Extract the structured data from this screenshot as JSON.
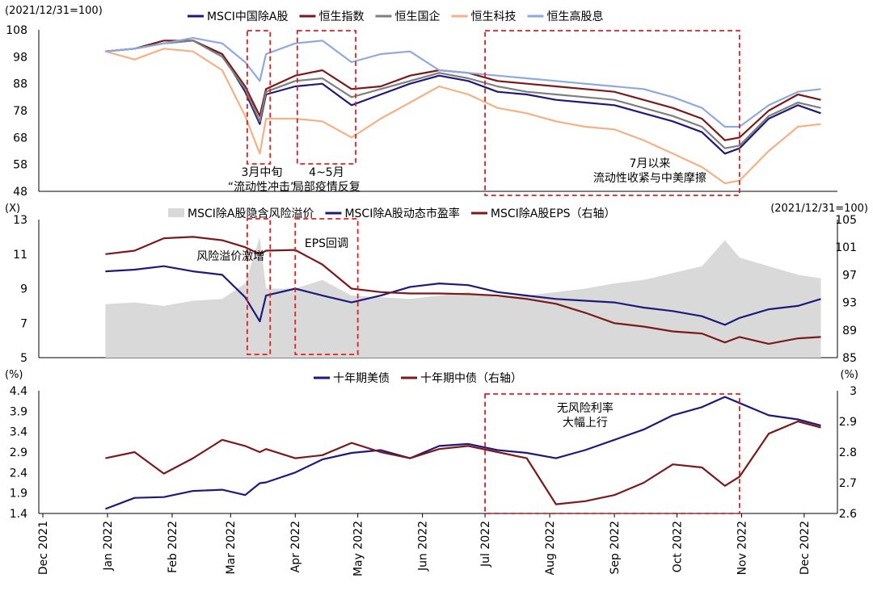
{
  "x_axis": {
    "labels": [
      "Dec 2021",
      "Jan 2022",
      "Feb 2022",
      "Mar 2022",
      "Apr 2022",
      "May 2022",
      "Jun 2022",
      "Jul 2022",
      "Aug 2022",
      "Sep 2022",
      "Oct 2022",
      "Nov 2022",
      "Dec 2022"
    ]
  },
  "panel1": {
    "unit_note": "(2021/12/31=100)",
    "legend": [
      "MSCI中国除A股",
      "恒生指数",
      "恒生国企",
      "恒生科技",
      "恒生高股息"
    ],
    "colors": [
      "#1f1a7a",
      "#7a1a1a",
      "#7f7f7f",
      "#f4b183",
      "#8ea9db"
    ],
    "annotations": [
      {
        "lines": [
          "3月中旬",
          "“流动性冲击”"
        ]
      },
      {
        "lines": [
          "4~5月",
          "局部疫情反复"
        ]
      },
      {
        "lines": [
          "7月以来",
          "流动性收紧与中美摩擦"
        ]
      }
    ]
  },
  "panel2": {
    "unit_left": "(X)",
    "unit_right": "(2021/12/31=100)",
    "legend": [
      "MSCI除A股隐含风险溢价",
      "MSCI除A股动态市盈率",
      "MSCI除A股EPS（右轴）"
    ],
    "colors": [
      "#d9d9d9",
      "#1f1a7a",
      "#7a1a1a"
    ],
    "annotations": [
      {
        "lines": [
          "风险溢价激增"
        ]
      },
      {
        "lines": [
          "EPS回调"
        ]
      }
    ]
  },
  "panel3": {
    "unit_left": "(%)",
    "unit_right": "(%)",
    "legend": [
      "十年期美债",
      "十年期中债（右轴）"
    ],
    "colors": [
      "#1f1a7a",
      "#7a1a1a"
    ],
    "annotations": [
      {
        "lines": [
          "无风险利率",
          "大幅上行"
        ]
      }
    ]
  },
  "chart_data": [
    {
      "type": "line",
      "ylim": [
        48,
        108
      ],
      "yticks": [
        48,
        58,
        68,
        78,
        88,
        98,
        108
      ],
      "x": [
        "2021-12-31",
        "2022-01-14",
        "2022-01-28",
        "2022-02-11",
        "2022-02-25",
        "2022-03-08",
        "2022-03-15",
        "2022-03-18",
        "2022-04-01",
        "2022-04-14",
        "2022-04-28",
        "2022-05-12",
        "2022-05-26",
        "2022-06-09",
        "2022-06-23",
        "2022-07-07",
        "2022-07-21",
        "2022-08-04",
        "2022-08-18",
        "2022-09-01",
        "2022-09-15",
        "2022-09-29",
        "2022-10-13",
        "2022-10-24",
        "2022-10-31",
        "2022-11-14",
        "2022-11-28",
        "2022-12-09"
      ],
      "series": [
        {
          "name": "MSCI中国除A股",
          "values": [
            100,
            101,
            103,
            104,
            99,
            85,
            73,
            84,
            87,
            88,
            80,
            84,
            88,
            91,
            89,
            85,
            84,
            82,
            81,
            80,
            77,
            74,
            70,
            62,
            64,
            75,
            80,
            77
          ]
        },
        {
          "name": "恒生指数",
          "values": [
            100,
            101,
            104,
            104,
            99,
            87,
            76,
            86,
            91,
            93,
            86,
            87,
            91,
            93,
            92,
            89,
            88,
            87,
            86,
            85,
            82,
            79,
            75,
            67,
            68,
            78,
            84,
            82
          ]
        },
        {
          "name": "恒生国企",
          "values": [
            100,
            101,
            103,
            104,
            98,
            86,
            74,
            85,
            89,
            90,
            83,
            86,
            89,
            92,
            90,
            87,
            85,
            84,
            83,
            82,
            79,
            76,
            72,
            64,
            65,
            76,
            81,
            79
          ]
        },
        {
          "name": "恒生科技",
          "values": [
            100,
            97,
            101,
            100,
            93,
            76,
            62,
            75,
            75,
            74,
            68,
            75,
            81,
            87,
            84,
            79,
            77,
            74,
            72,
            71,
            67,
            62,
            57,
            51,
            52,
            63,
            72,
            73
          ]
        },
        {
          "name": "恒生高股息",
          "values": [
            100,
            101,
            103,
            105,
            103,
            96,
            89,
            99,
            103,
            104,
            96,
            99,
            100,
            93,
            92,
            91,
            90,
            89,
            88,
            87,
            86,
            83,
            79,
            72,
            72,
            80,
            85,
            86
          ]
        }
      ]
    },
    {
      "type": "line",
      "ylim": [
        5,
        13
      ],
      "yticks": [
        5,
        7,
        9,
        11,
        13
      ],
      "ylim_right": [
        85,
        105
      ],
      "yticks_right": [
        85,
        89,
        93,
        97,
        101,
        105
      ],
      "x": [
        "2021-12-31",
        "2022-01-14",
        "2022-01-28",
        "2022-02-11",
        "2022-02-25",
        "2022-03-08",
        "2022-03-15",
        "2022-03-18",
        "2022-04-01",
        "2022-04-14",
        "2022-04-28",
        "2022-05-12",
        "2022-05-26",
        "2022-06-09",
        "2022-06-23",
        "2022-07-07",
        "2022-07-21",
        "2022-08-04",
        "2022-08-18",
        "2022-09-01",
        "2022-09-15",
        "2022-09-29",
        "2022-10-13",
        "2022-10-24",
        "2022-10-31",
        "2022-11-14",
        "2022-11-28",
        "2022-12-09"
      ],
      "series": [
        {
          "name": "MSCI除A股隐含风险溢价",
          "axis": "left",
          "values": [
            8.1,
            8.2,
            8.0,
            8.3,
            8.4,
            9.3,
            12.0,
            9.0,
            9.0,
            9.5,
            8.6,
            8.5,
            8.4,
            8.6,
            8.8,
            8.5,
            8.6,
            8.8,
            9.0,
            9.3,
            9.5,
            9.9,
            10.3,
            11.8,
            10.8,
            10.3,
            9.8,
            9.6
          ]
        },
        {
          "name": "MSCI除A股动态市盈率",
          "axis": "left",
          "values": [
            10.0,
            10.1,
            10.3,
            10.0,
            9.8,
            8.5,
            7.1,
            8.6,
            9.0,
            8.6,
            8.2,
            8.6,
            9.1,
            9.3,
            9.2,
            8.8,
            8.6,
            8.4,
            8.3,
            8.2,
            7.9,
            7.7,
            7.4,
            6.9,
            7.3,
            7.8,
            8.0,
            8.4
          ]
        },
        {
          "name": "MSCI除A股EPS（右轴）",
          "axis": "right",
          "values": [
            100.0,
            100.5,
            102.3,
            102.5,
            102.0,
            101.0,
            100.0,
            100.5,
            100.6,
            98.5,
            95.0,
            94.5,
            94.3,
            94.3,
            94.2,
            94.0,
            93.5,
            92.8,
            91.5,
            90.0,
            89.5,
            88.8,
            88.5,
            87.2,
            88.0,
            87.0,
            87.8,
            88.0
          ]
        }
      ]
    },
    {
      "type": "line",
      "ylim": [
        1.4,
        4.4
      ],
      "yticks": [
        1.4,
        1.9,
        2.4,
        2.9,
        3.4,
        3.9,
        4.4
      ],
      "ylim_right": [
        2.6,
        3.0
      ],
      "yticks_right": [
        2.6,
        2.7,
        2.8,
        2.9,
        3.0
      ],
      "x": [
        "2021-12-31",
        "2022-01-14",
        "2022-01-28",
        "2022-02-11",
        "2022-02-25",
        "2022-03-08",
        "2022-03-15",
        "2022-03-18",
        "2022-04-01",
        "2022-04-14",
        "2022-04-28",
        "2022-05-12",
        "2022-05-26",
        "2022-06-09",
        "2022-06-23",
        "2022-07-07",
        "2022-07-21",
        "2022-08-04",
        "2022-08-18",
        "2022-09-01",
        "2022-09-15",
        "2022-09-29",
        "2022-10-13",
        "2022-10-24",
        "2022-10-31",
        "2022-11-14",
        "2022-11-28",
        "2022-12-09"
      ],
      "series": [
        {
          "name": "十年期美债",
          "axis": "left",
          "values": [
            1.51,
            1.78,
            1.8,
            1.95,
            1.98,
            1.85,
            2.14,
            2.16,
            2.4,
            2.72,
            2.88,
            2.95,
            2.75,
            3.05,
            3.1,
            2.95,
            2.88,
            2.75,
            2.95,
            3.2,
            3.45,
            3.8,
            4.0,
            4.25,
            4.1,
            3.8,
            3.7,
            3.55
          ]
        },
        {
          "name": "十年期中债（右轴）",
          "axis": "right",
          "values": [
            2.78,
            2.8,
            2.73,
            2.78,
            2.84,
            2.82,
            2.8,
            2.81,
            2.78,
            2.79,
            2.83,
            2.8,
            2.78,
            2.81,
            2.82,
            2.8,
            2.78,
            2.63,
            2.64,
            2.66,
            2.7,
            2.76,
            2.75,
            2.69,
            2.72,
            2.86,
            2.9,
            2.88
          ]
        }
      ]
    }
  ]
}
